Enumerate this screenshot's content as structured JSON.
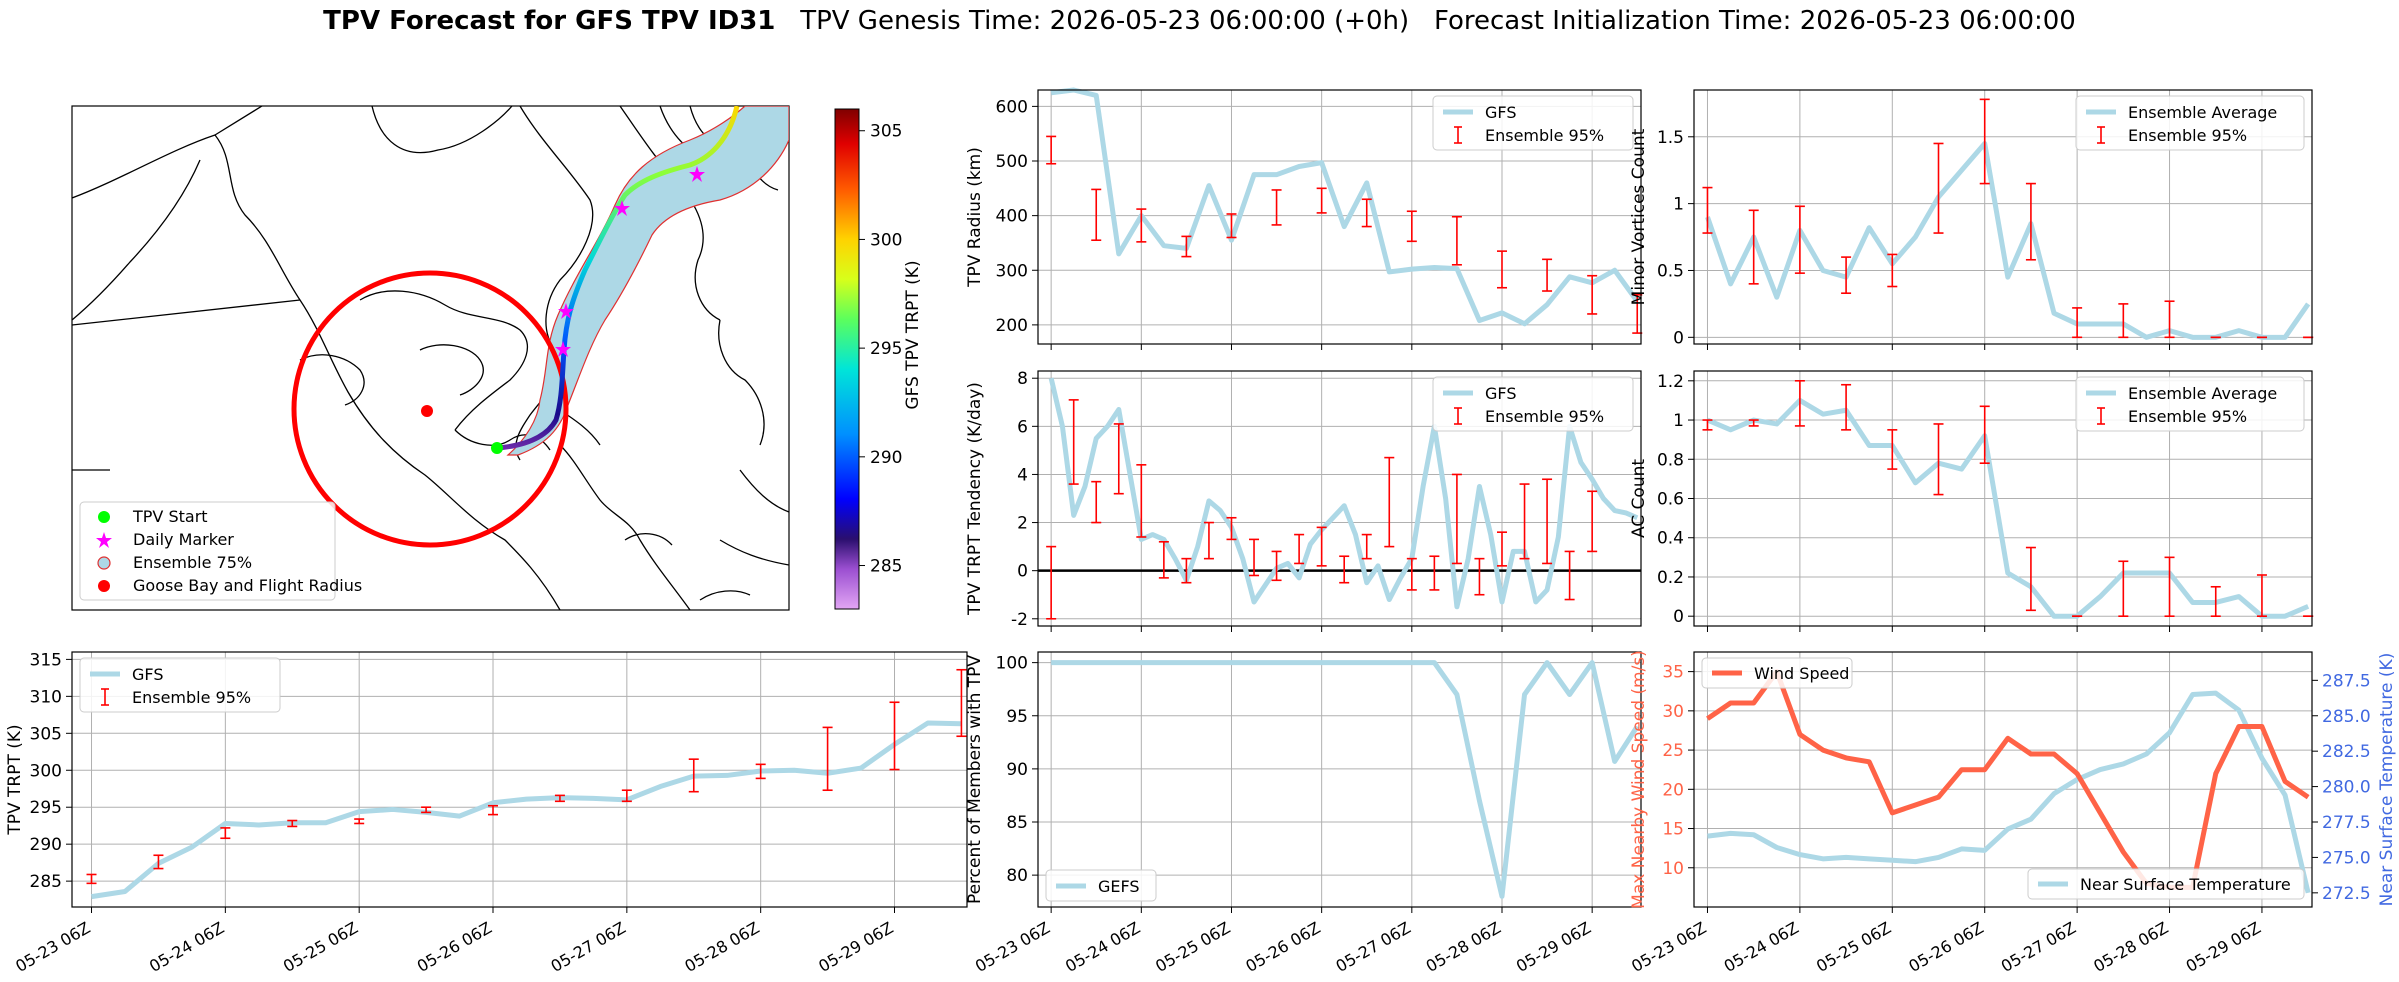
{
  "title": {
    "main": "TPV Forecast for GFS TPV ID31",
    "genesis": "TPV Genesis Time: 2026-05-23 06:00:00 (+0h)",
    "init": "Forecast Initialization Time: 2026-05-23 06:00:00"
  },
  "colors": {
    "gfs": "#add8e6",
    "ens": "#ff0000",
    "wind": "#ff6347",
    "temp_axis": "#4169e1",
    "grid": "#b0b0b0",
    "legend_start": "#00ff00",
    "legend_marker": "#ff00ff",
    "legend_goose": "#ff0000"
  },
  "map": {
    "legend": [
      "TPV Start",
      "Daily Marker",
      "Ensemble 75%",
      "Goose Bay and Flight Radius"
    ],
    "colorbar_label": "GFS TPV TRPT (K)",
    "colorbar_ticks": [
      285,
      290,
      295,
      300,
      305
    ],
    "colorbar_range": [
      283,
      306
    ]
  },
  "chart_data": [
    {
      "id": "trpt",
      "type": "line",
      "ylabel": "TPV TRPT (K)",
      "ylim": [
        281.5,
        316
      ],
      "yticks": [
        285,
        290,
        295,
        300,
        305,
        310,
        315
      ],
      "xticklabels": [
        "05-23 06Z",
        "05-24 06Z",
        "05-25 06Z",
        "05-26 06Z",
        "05-27 06Z",
        "05-28 06Z",
        "05-29 06Z"
      ],
      "legend": [
        "GFS",
        "Ensemble 95%"
      ],
      "legend_pos": "upper-left",
      "x_hours": [
        0,
        6,
        12,
        18,
        24,
        30,
        36,
        42,
        48,
        54,
        60,
        66,
        72,
        78,
        84,
        90,
        96,
        102,
        108,
        114,
        120,
        126,
        132,
        138,
        144,
        150,
        156
      ],
      "gfs": [
        282.9,
        283.6,
        287.4,
        289.6,
        292.8,
        292.6,
        292.9,
        292.9,
        294.4,
        294.7,
        294.3,
        293.8,
        295.6,
        296.1,
        296.3,
        296.2,
        296.0,
        297.8,
        299.2,
        299.3,
        299.9,
        300.0,
        299.6,
        300.3,
        303.5,
        306.4,
        306.3
      ],
      "ens": [
        [
          0,
          284.7,
          285.9
        ],
        [
          12,
          286.7,
          288.5
        ],
        [
          24,
          290.8,
          292.2
        ],
        [
          36,
          292.4,
          293.2
        ],
        [
          48,
          292.8,
          293.4
        ],
        [
          60,
          294.3,
          295.0
        ],
        [
          72,
          294.0,
          295.2
        ],
        [
          84,
          295.8,
          296.6
        ],
        [
          96,
          295.8,
          297.3
        ],
        [
          108,
          297.1,
          301.5
        ],
        [
          120,
          298.9,
          300.8
        ],
        [
          132,
          297.3,
          305.8
        ],
        [
          144,
          300.1,
          309.2
        ],
        [
          156,
          304.6,
          313.6
        ]
      ]
    },
    {
      "id": "radius",
      "type": "line",
      "ylabel": "TPV Radius (km)",
      "ylim": [
        165,
        630
      ],
      "yticks": [
        200,
        300,
        400,
        500,
        600
      ],
      "legend": [
        "GFS",
        "Ensemble 95%"
      ],
      "legend_pos": "upper-right",
      "x_hours": [
        0,
        6,
        12,
        18,
        24,
        30,
        36,
        42,
        48,
        54,
        60,
        66,
        72,
        78,
        84,
        90,
        96,
        102,
        108,
        114,
        120,
        126,
        132,
        138,
        144,
        150,
        156
      ],
      "gfs": [
        625,
        630,
        620,
        330,
        400,
        345,
        340,
        455,
        355,
        475,
        475,
        490,
        497,
        380,
        460,
        297,
        302,
        305,
        303,
        208,
        222,
        202,
        237,
        288,
        277,
        300,
        243
      ],
      "ens": [
        [
          0,
          495,
          545
        ],
        [
          12,
          355,
          448
        ],
        [
          24,
          352,
          412
        ],
        [
          36,
          325,
          362
        ],
        [
          48,
          360,
          403
        ],
        [
          60,
          383,
          447
        ],
        [
          72,
          405,
          450
        ],
        [
          84,
          380,
          430
        ],
        [
          96,
          353,
          408
        ],
        [
          108,
          310,
          398
        ],
        [
          120,
          268,
          335
        ],
        [
          132,
          262,
          320
        ],
        [
          144,
          220,
          290
        ],
        [
          156,
          185,
          255
        ]
      ]
    },
    {
      "id": "minor",
      "type": "line",
      "ylabel": "Minor Vortices Count",
      "ylim": [
        -0.05,
        1.85
      ],
      "yticks": [
        0.0,
        0.5,
        1.0,
        1.5
      ],
      "legend": [
        "Ensemble Average",
        "Ensemble 95%"
      ],
      "legend_pos": "upper-right",
      "x_hours": [
        0,
        6,
        12,
        18,
        24,
        30,
        36,
        42,
        48,
        54,
        60,
        66,
        72,
        78,
        84,
        90,
        96,
        102,
        108,
        114,
        120,
        126,
        132,
        138,
        144,
        150,
        156
      ],
      "gfs": [
        0.9,
        0.4,
        0.75,
        0.3,
        0.8,
        0.5,
        0.45,
        0.82,
        0.55,
        0.75,
        1.05,
        1.25,
        1.45,
        0.45,
        0.85,
        0.18,
        0.1,
        0.1,
        0.1,
        0.0,
        0.05,
        0.0,
        0.0,
        0.05,
        0.0,
        0.0,
        0.25
      ],
      "ens": [
        [
          0,
          0.78,
          1.12
        ],
        [
          12,
          0.4,
          0.95
        ],
        [
          24,
          0.48,
          0.98
        ],
        [
          36,
          0.33,
          0.6
        ],
        [
          48,
          0.38,
          0.62
        ],
        [
          60,
          0.78,
          1.45
        ],
        [
          72,
          1.15,
          1.78
        ],
        [
          84,
          0.58,
          1.15
        ],
        [
          96,
          0.0,
          0.22
        ],
        [
          108,
          0.0,
          0.25
        ],
        [
          120,
          0.0,
          0.27
        ],
        [
          132,
          0.0,
          0.0
        ],
        [
          144,
          0.0,
          0.0
        ],
        [
          156,
          0.0,
          0.0
        ]
      ]
    },
    {
      "id": "tendency",
      "type": "line",
      "ylabel": "TPV TRPT Tendency (K/day)",
      "ylim": [
        -2.3,
        8.3
      ],
      "yticks": [
        -2,
        0,
        2,
        4,
        6,
        8
      ],
      "zero_line": true,
      "legend": [
        "GFS",
        "Ensemble 95%"
      ],
      "legend_pos": "upper-right",
      "x_hours": [
        0,
        3,
        6,
        9,
        12,
        15,
        18,
        21,
        24,
        27,
        30,
        33,
        36,
        39,
        42,
        45,
        48,
        51,
        54,
        57,
        60,
        63,
        66,
        69,
        72,
        75,
        78,
        81,
        84,
        87,
        90,
        93,
        96,
        99,
        102,
        105,
        108,
        111,
        114,
        117,
        120,
        123,
        126,
        129,
        132,
        135,
        138,
        141,
        144,
        147,
        150,
        153,
        156
      ],
      "gfs": [
        8.0,
        6.0,
        2.3,
        3.5,
        5.5,
        6.0,
        6.7,
        4.0,
        1.3,
        1.5,
        1.3,
        0.5,
        -0.4,
        1.0,
        2.9,
        2.5,
        1.8,
        0.5,
        -1.3,
        -0.6,
        0.1,
        0.3,
        -0.3,
        1.1,
        1.7,
        2.2,
        2.7,
        1.5,
        -0.5,
        0.2,
        -1.2,
        -0.3,
        0.5,
        3.5,
        6.0,
        3.0,
        -1.5,
        0.5,
        3.5,
        1.5,
        -1.3,
        0.8,
        0.8,
        -1.3,
        -0.8,
        1.4,
        6.0,
        4.5,
        3.8,
        3.0,
        2.5,
        2.4,
        2.2
      ],
      "ens": [
        [
          0,
          -2.0,
          1.0
        ],
        [
          6,
          3.6,
          7.1
        ],
        [
          12,
          2.0,
          3.7
        ],
        [
          18,
          3.2,
          6.1
        ],
        [
          24,
          1.4,
          4.4
        ],
        [
          30,
          -0.3,
          1.2
        ],
        [
          36,
          -0.5,
          0.5
        ],
        [
          42,
          0.5,
          2.0
        ],
        [
          48,
          1.3,
          2.2
        ],
        [
          54,
          -0.2,
          1.3
        ],
        [
          60,
          -0.4,
          0.8
        ],
        [
          66,
          0.3,
          1.5
        ],
        [
          72,
          0.2,
          1.8
        ],
        [
          78,
          -0.5,
          0.6
        ],
        [
          84,
          0.5,
          1.5
        ],
        [
          90,
          1.0,
          4.7
        ],
        [
          96,
          -0.8,
          0.5
        ],
        [
          102,
          -0.8,
          0.6
        ],
        [
          108,
          0.3,
          4.0
        ],
        [
          114,
          -1.0,
          0.5
        ],
        [
          120,
          0.2,
          1.6
        ],
        [
          126,
          0.5,
          3.6
        ],
        [
          132,
          0.3,
          3.8
        ],
        [
          138,
          -1.2,
          0.8
        ],
        [
          144,
          0.8,
          3.3
        ]
      ]
    },
    {
      "id": "ac",
      "type": "line",
      "ylabel": "AC Count",
      "ylim": [
        -0.05,
        1.25
      ],
      "yticks": [
        0.0,
        0.2,
        0.4,
        0.6,
        0.8,
        1.0,
        1.2
      ],
      "legend": [
        "Ensemble Average",
        "Ensemble 95%"
      ],
      "legend_pos": "upper-right",
      "x_hours": [
        0,
        6,
        12,
        18,
        24,
        30,
        36,
        42,
        48,
        54,
        60,
        66,
        72,
        78,
        84,
        90,
        96,
        102,
        108,
        114,
        120,
        126,
        132,
        138,
        144,
        150,
        156
      ],
      "gfs": [
        1.0,
        0.95,
        1.0,
        0.98,
        1.1,
        1.03,
        1.05,
        0.87,
        0.87,
        0.68,
        0.78,
        0.75,
        0.92,
        0.22,
        0.15,
        0.0,
        0.0,
        0.1,
        0.22,
        0.22,
        0.22,
        0.07,
        0.07,
        0.1,
        0.0,
        0.0,
        0.05
      ],
      "ens": [
        [
          0,
          0.95,
          1.0
        ],
        [
          12,
          0.97,
          1.0
        ],
        [
          24,
          0.97,
          1.2
        ],
        [
          36,
          0.95,
          1.18
        ],
        [
          48,
          0.75,
          0.95
        ],
        [
          60,
          0.62,
          0.98
        ],
        [
          72,
          0.78,
          1.07
        ],
        [
          84,
          0.03,
          0.35
        ],
        [
          96,
          0.0,
          0.0
        ],
        [
          108,
          0.0,
          0.28
        ],
        [
          120,
          0.0,
          0.3
        ],
        [
          132,
          0.0,
          0.15
        ],
        [
          144,
          0.0,
          0.21
        ],
        [
          156,
          0.0,
          0.0
        ]
      ]
    },
    {
      "id": "percent",
      "type": "line",
      "ylabel": "Percent of Members with TPV",
      "ylim": [
        77,
        101
      ],
      "yticks": [
        80,
        85,
        90,
        95,
        100
      ],
      "legend": [
        "GEFS"
      ],
      "legend_pos": "lower-left",
      "x_hours": [
        0,
        6,
        12,
        18,
        24,
        30,
        36,
        42,
        48,
        54,
        60,
        66,
        72,
        78,
        84,
        90,
        96,
        102,
        108,
        114,
        120,
        126,
        132,
        138,
        144,
        150,
        156
      ],
      "gfs": [
        100,
        100,
        100,
        100,
        100,
        100,
        100,
        100,
        100,
        100,
        100,
        100,
        100,
        100,
        100,
        100,
        100,
        100,
        97,
        87,
        78,
        97,
        100,
        97,
        100,
        90.7,
        94
      ]
    },
    {
      "id": "wind_temp",
      "type": "line",
      "ylabel": "Max Nearby Wind Speed (m/s)",
      "ylabel2": "Near Surface Temperature (K)",
      "ylim": [
        5,
        37.5
      ],
      "yticks": [
        10,
        15,
        20,
        25,
        30,
        35
      ],
      "ylim2": [
        271.5,
        289.5
      ],
      "yticks2": [
        272.5,
        275.0,
        277.5,
        280.0,
        282.5,
        285.0,
        287.5
      ],
      "legend": [
        "Wind Speed"
      ],
      "legend2": [
        "Near Surface Temperature"
      ],
      "x_hours": [
        0,
        6,
        12,
        18,
        24,
        30,
        36,
        42,
        48,
        54,
        60,
        66,
        72,
        78,
        84,
        90,
        96,
        102,
        108,
        114,
        120,
        126,
        132,
        138,
        144,
        150,
        156
      ],
      "wind": [
        29,
        31,
        31,
        35,
        27,
        25,
        24,
        23.5,
        17,
        18,
        19,
        22.5,
        22.5,
        26.5,
        24.5,
        24.5,
        22,
        17,
        12,
        8,
        7.5,
        7.5,
        22,
        28,
        28,
        21,
        19
      ],
      "temp": [
        276.5,
        276.7,
        276.6,
        275.7,
        275.2,
        274.9,
        275.0,
        274.9,
        274.8,
        274.7,
        275.0,
        275.6,
        275.5,
        277.0,
        277.7,
        279.5,
        280.5,
        281.2,
        281.6,
        282.3,
        283.8,
        286.5,
        286.6,
        285.4,
        282.0,
        279.4,
        272.5
      ]
    }
  ]
}
